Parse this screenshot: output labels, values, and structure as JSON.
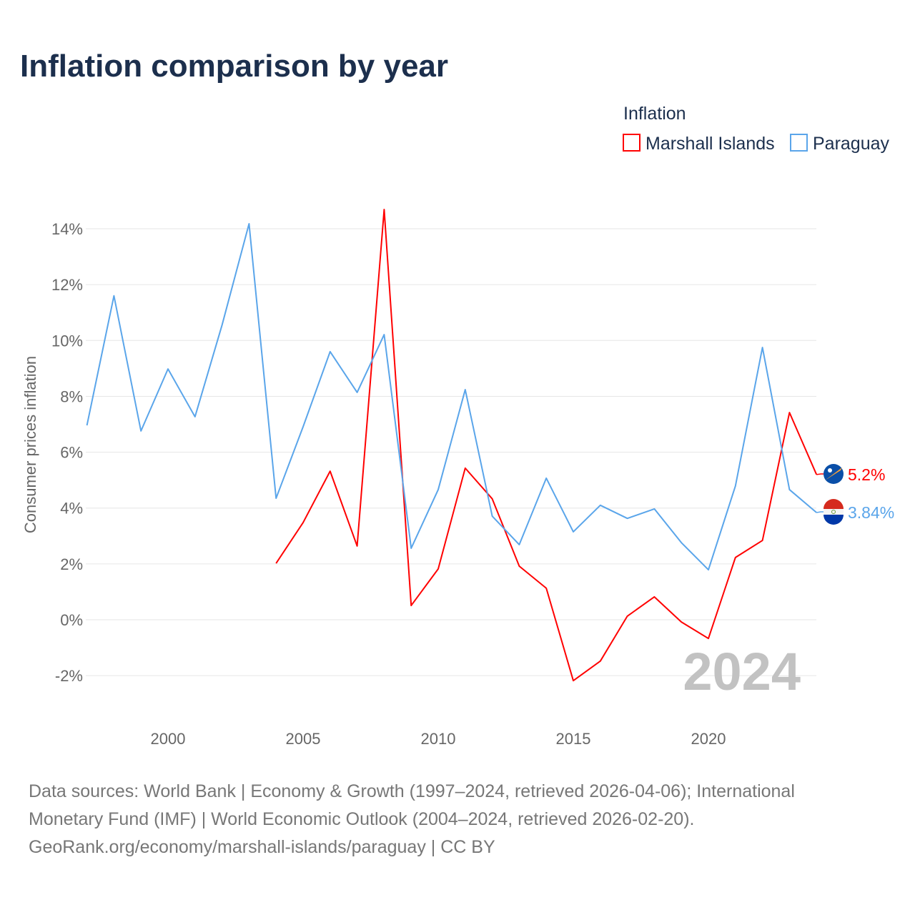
{
  "title": "Inflation comparison by year",
  "chart_data": {
    "type": "line",
    "title": "Inflation comparison by year",
    "ylabel": "Consumer prices inflation",
    "xlabel": "",
    "legend_title": "Inflation",
    "legend_position": "top-right",
    "ylim": [
      -3,
      15
    ],
    "xlim": [
      1997,
      2024
    ],
    "y_ticks": [
      -2,
      0,
      2,
      4,
      6,
      8,
      10,
      12,
      14
    ],
    "y_tick_labels": [
      "-2%",
      "0%",
      "2%",
      "4%",
      "6%",
      "8%",
      "10%",
      "12%",
      "14%"
    ],
    "x_ticks": [
      2000,
      2005,
      2010,
      2015,
      2020
    ],
    "x_tick_labels": [
      "2000",
      "2005",
      "2010",
      "2015",
      "2020"
    ],
    "grid": true,
    "year_watermark": "2024",
    "series": [
      {
        "name": "Marshall Islands",
        "color": "#ff0000",
        "end_label": "5.2%",
        "x": [
          2004,
          2005,
          2006,
          2007,
          2008,
          2009,
          2010,
          2011,
          2012,
          2013,
          2014,
          2015,
          2016,
          2017,
          2018,
          2019,
          2020,
          2021,
          2022,
          2023,
          2024
        ],
        "values": [
          2.02,
          3.48,
          5.32,
          2.64,
          14.69,
          0.51,
          1.82,
          5.43,
          4.33,
          1.92,
          1.13,
          -2.18,
          -1.48,
          0.13,
          0.82,
          -0.08,
          -0.67,
          2.23,
          2.84,
          7.42,
          5.2
        ]
      },
      {
        "name": "Paraguay",
        "color": "#5aa5ea",
        "end_label": "3.84%",
        "x": [
          1997,
          1998,
          1999,
          2000,
          2001,
          2002,
          2003,
          2004,
          2005,
          2006,
          2007,
          2008,
          2009,
          2010,
          2011,
          2012,
          2013,
          2014,
          2015,
          2016,
          2017,
          2018,
          2019,
          2020,
          2021,
          2022,
          2023,
          2024
        ],
        "values": [
          6.96,
          11.6,
          6.76,
          8.98,
          7.27,
          10.55,
          14.18,
          4.35,
          6.91,
          9.6,
          8.14,
          10.21,
          2.56,
          4.66,
          8.24,
          3.71,
          2.69,
          5.07,
          3.15,
          4.1,
          3.63,
          3.97,
          2.76,
          1.79,
          4.79,
          9.75,
          4.66,
          3.84
        ]
      }
    ]
  },
  "sources": {
    "line1": "Data sources: World Bank | Economy & Growth (1997–2024, retrieved 2026-04-06); International",
    "line2": "Monetary Fund (IMF) | World Economic Outlook (2004–2024, retrieved 2026-02-20).",
    "line3": "GeoRank.org/economy/marshall-islands/paraguay | CC BY"
  }
}
